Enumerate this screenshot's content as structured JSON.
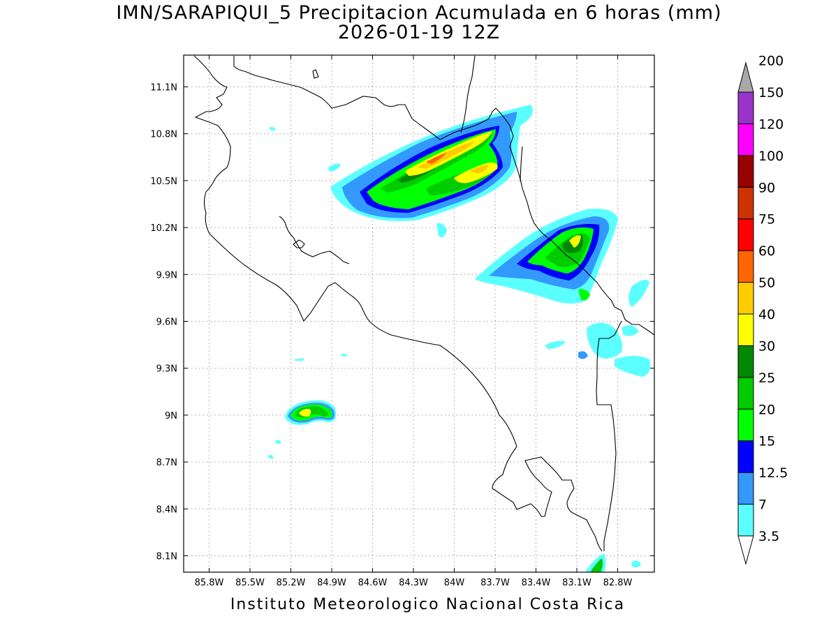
{
  "title": "IMN/SARAPIQUI_5 Precipitacion Acumulada en 6 horas (mm)",
  "subtitle": "2026-01-19 12Z",
  "footer": "Instituto Meteorologico Nacional Costa Rica",
  "map": {
    "lon_range": [
      -86.0,
      -82.6
    ],
    "lat_range": [
      8.0,
      11.3
    ],
    "lon_ticks": [
      "85.8W",
      "85.5W",
      "85.2W",
      "84.9W",
      "84.6W",
      "84.3W",
      "84W",
      "83.7W",
      "83.4W",
      "83.1W",
      "82.8W"
    ],
    "lat_ticks": [
      "11.1N",
      "10.8N",
      "10.5N",
      "10.2N",
      "9.9N",
      "9.6N",
      "9.3N",
      "9N",
      "8.7N",
      "8.4N",
      "8.1N"
    ],
    "grid": true
  },
  "colorbar": {
    "levels": [
      "3.5",
      "7",
      "12.5",
      "15",
      "20",
      "25",
      "30",
      "40",
      "50",
      "60",
      "75",
      "90",
      "100",
      "120",
      "150",
      "200"
    ],
    "colors": [
      "#5cffff",
      "#3399ff",
      "#0000ff",
      "#00ff00",
      "#00cc00",
      "#008800",
      "#ffff00",
      "#ffcc00",
      "#ff6600",
      "#ff0000",
      "#cc3300",
      "#990000",
      "#ff00ff",
      "#9933cc",
      "#f5f5f5",
      "#a8a8a8"
    ]
  }
}
